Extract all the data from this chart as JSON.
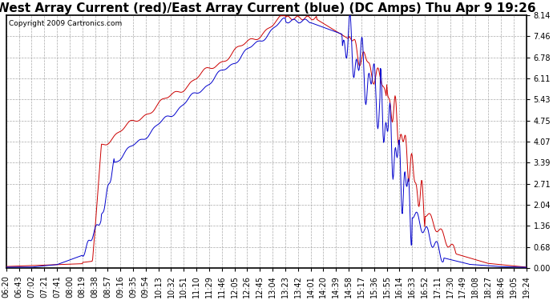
{
  "title": "West Array Current (red)/East Array Current (blue) (DC Amps) Thu Apr 9 19:26",
  "copyright": "Copyright 2009 Cartronics.com",
  "background_color": "#ffffff",
  "plot_bg_color": "#ffffff",
  "y_ticks": [
    0.0,
    0.68,
    1.36,
    2.04,
    2.71,
    3.39,
    4.07,
    4.75,
    5.43,
    6.11,
    6.78,
    7.46,
    8.14
  ],
  "y_min": 0.0,
  "y_max": 8.14,
  "x_labels": [
    "06:20",
    "06:43",
    "07:02",
    "07:21",
    "07:41",
    "08:00",
    "08:19",
    "08:38",
    "08:57",
    "09:16",
    "09:35",
    "09:54",
    "10:13",
    "10:32",
    "10:51",
    "11:10",
    "11:29",
    "11:46",
    "12:05",
    "12:26",
    "12:45",
    "13:04",
    "13:23",
    "13:42",
    "14:01",
    "14:20",
    "14:39",
    "14:58",
    "15:17",
    "15:36",
    "15:55",
    "16:14",
    "16:33",
    "16:52",
    "17:11",
    "17:30",
    "17:49",
    "18:08",
    "18:27",
    "18:46",
    "19:05",
    "19:24"
  ],
  "red_color": "#cc0000",
  "blue_color": "#0000cc",
  "grid_color": "#aaaaaa",
  "border_color": "#000000",
  "title_fontsize": 11,
  "tick_fontsize": 7,
  "copyright_fontsize": 6.5
}
